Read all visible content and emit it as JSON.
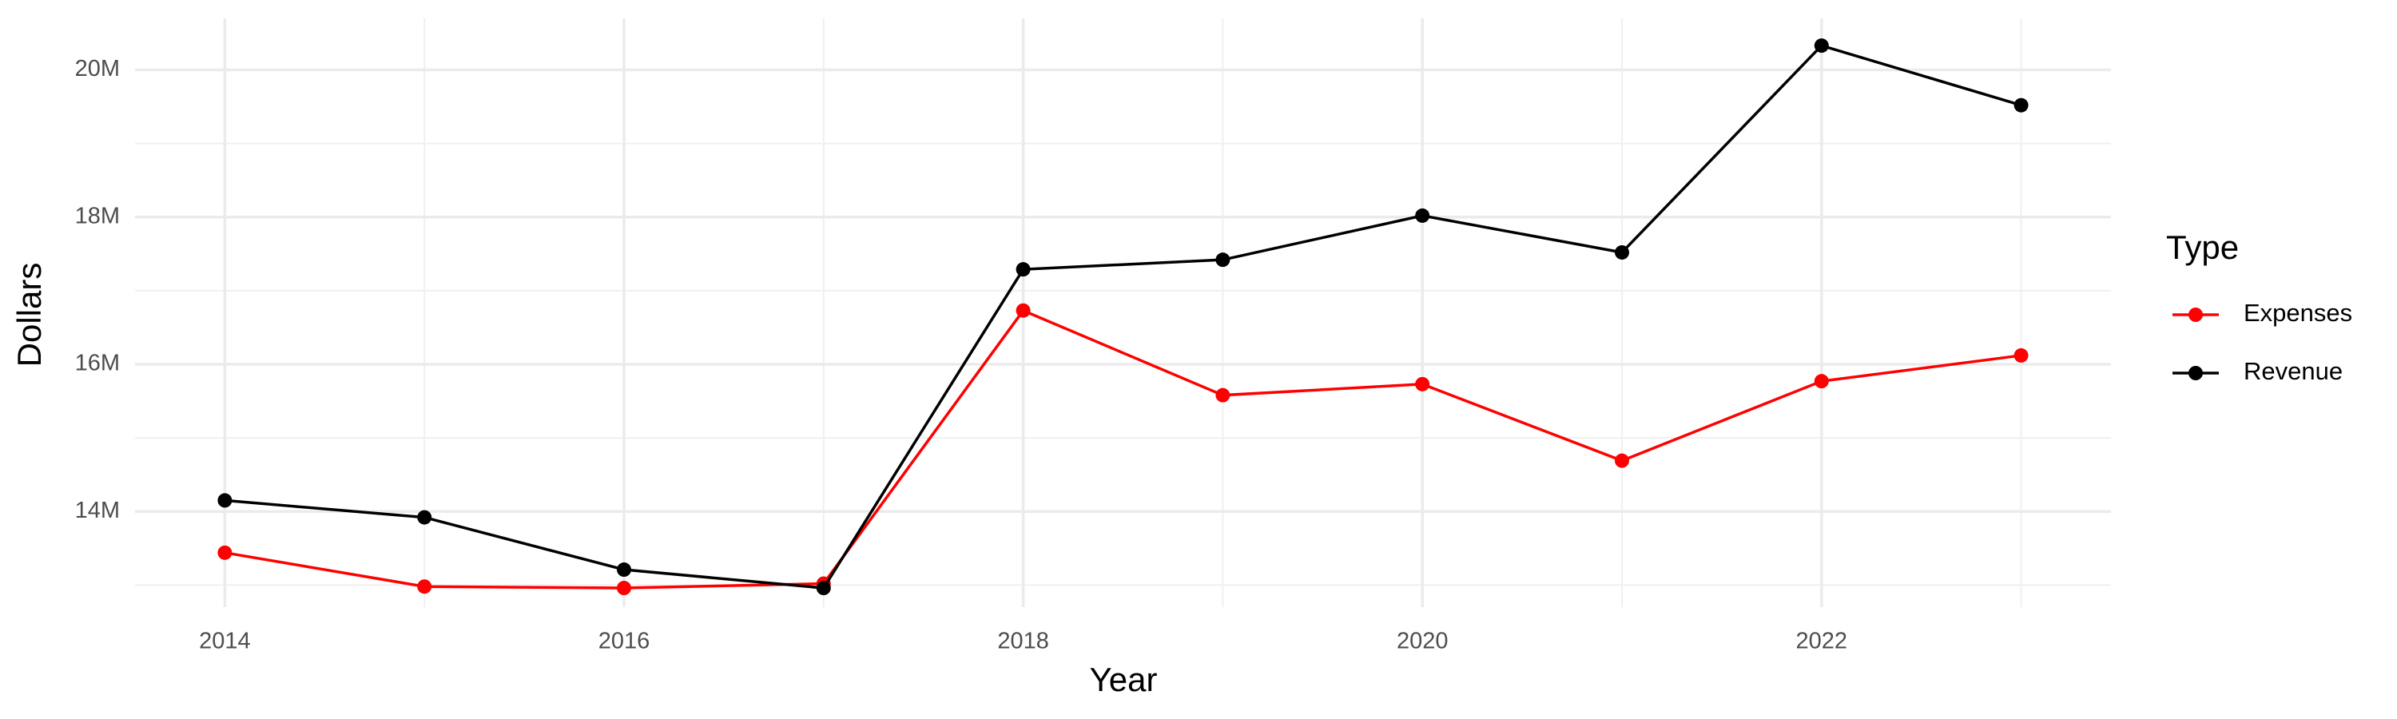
{
  "chart_data": {
    "type": "line",
    "x_label": "Year",
    "y_label": "Dollars",
    "legend_title": "Type",
    "x": [
      2014,
      2015,
      2016,
      2017,
      2018,
      2019,
      2020,
      2021,
      2022,
      2023
    ],
    "series": [
      {
        "name": "Expenses",
        "color": "#ff0000",
        "values": [
          13440000,
          12980000,
          12960000,
          13020000,
          16730000,
          15580000,
          15730000,
          14690000,
          15770000,
          16120000
        ]
      },
      {
        "name": "Revenue",
        "color": "#000000",
        "values": [
          14150000,
          13920000,
          13210000,
          12960000,
          17290000,
          17420000,
          18020000,
          17520000,
          20330000,
          19520000
        ]
      }
    ],
    "xlim": [
      2013.55,
      2023.45
    ],
    "ylim": [
      12700000,
      20700000
    ],
    "xticks": [
      2014,
      2016,
      2018,
      2020,
      2022
    ],
    "yticks": [
      {
        "value": 14000000,
        "label": "14M"
      },
      {
        "value": 16000000,
        "label": "16M"
      },
      {
        "value": 18000000,
        "label": "18M"
      },
      {
        "value": 20000000,
        "label": "20M"
      }
    ],
    "grid": true,
    "legend_position": "right"
  }
}
